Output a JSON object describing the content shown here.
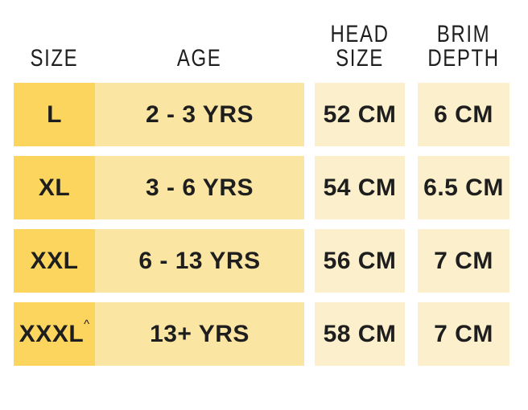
{
  "chart_data": {
    "type": "table",
    "columns": [
      "SIZE",
      "AGE",
      "HEAD SIZE",
      "BRIM DEPTH"
    ],
    "rows": [
      [
        "L",
        "2 - 3 YRS",
        "52 CM",
        "6 CM"
      ],
      [
        "XL",
        "3 - 6 YRS",
        "54 CM",
        "6.5 CM"
      ],
      [
        "XXL",
        "6 - 13 YRS",
        "56 CM",
        "7 CM"
      ],
      [
        "XXXL^",
        "13+ YRS",
        "58 CM",
        "7 CM"
      ]
    ],
    "layout": "4 data rows separated by white gaps; size column darkest yellow, age column medium yellow, head-size and brim-depth columns pale cream"
  },
  "table": {
    "headers": {
      "size": "SIZE",
      "age": "AGE",
      "head_size": "HEAD SIZE",
      "brim_depth": "BRIM DEPTH"
    },
    "rows": [
      {
        "size": "L",
        "size_note": "",
        "age": "2 - 3 YRS",
        "head_size": "52 CM",
        "brim_depth": "6 CM"
      },
      {
        "size": "XL",
        "size_note": "",
        "age": "3 - 6 YRS",
        "head_size": "54 CM",
        "brim_depth": "6.5 CM"
      },
      {
        "size": "XXL",
        "size_note": "",
        "age": "6 - 13 YRS",
        "head_size": "56 CM",
        "brim_depth": "7 CM"
      },
      {
        "size": "XXXL",
        "size_note": "^",
        "age": "13+ YRS",
        "head_size": "58 CM",
        "brim_depth": "7 CM"
      }
    ]
  },
  "colors": {
    "size_cell_bg": "#FCD55E",
    "age_cell_bg": "#FBE5A2",
    "value_cell_bg": "#FCEFCB",
    "text": "#1E1E1E",
    "background": "#FFFFFF"
  }
}
